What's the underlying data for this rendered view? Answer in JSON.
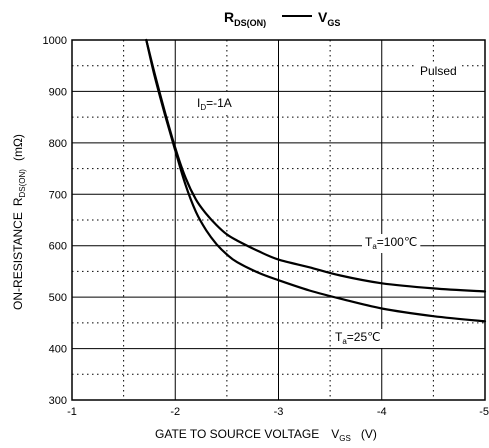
{
  "chart_data": {
    "type": "line",
    "title": {
      "left_main": "R",
      "left_sub": "DS(ON)",
      "right_main": "V",
      "right_sub": "GS"
    },
    "xlabel": {
      "main": "GATE TO SOURCE VOLTAGE",
      "symbol": "V",
      "symbol_sub": "GS",
      "unit": "(V)"
    },
    "ylabel": {
      "main": "ON-RESISTANCE",
      "symbol": "R",
      "symbol_sub": "DS(ON)",
      "unit": "(mΩ)"
    },
    "xlim": [
      -1,
      -5
    ],
    "ylim": [
      300,
      1000
    ],
    "x_tick_values": [
      -1,
      -2,
      -3,
      -4,
      -5
    ],
    "x_tick_labels": [
      "-1",
      "-2",
      "-3",
      "-4",
      "-5"
    ],
    "y_tick_values": [
      300,
      400,
      500,
      600,
      700,
      800,
      900,
      1000
    ],
    "y_tick_labels": [
      "300",
      "400",
      "500",
      "600",
      "700",
      "800",
      "900",
      "1000"
    ],
    "grid": true,
    "annotations": {
      "pulsed": "Pulsed",
      "id_main": "I",
      "id_sub": "D",
      "id_value": "=-1A"
    },
    "series": [
      {
        "label_main": "T",
        "label_sub": "a",
        "label_value": "=100℃",
        "x": [
          -1.72,
          -1.8,
          -1.9,
          -2.0,
          -2.1,
          -2.2,
          -2.3,
          -2.4,
          -2.5,
          -2.6,
          -2.8,
          -3.0,
          -3.3,
          -3.6,
          -4.0,
          -4.5,
          -5.0
        ],
        "y": [
          1000,
          935,
          860,
          790,
          732,
          690,
          662,
          640,
          622,
          610,
          590,
          573,
          558,
          542,
          527,
          517,
          511
        ]
      },
      {
        "label_main": "T",
        "label_sub": "a",
        "label_value": "=25℃",
        "x": [
          -1.72,
          -1.8,
          -1.9,
          -2.0,
          -2.1,
          -2.2,
          -2.3,
          -2.4,
          -2.5,
          -2.6,
          -2.8,
          -3.0,
          -3.3,
          -3.6,
          -4.0,
          -4.5,
          -5.0
        ],
        "y": [
          1000,
          930,
          855,
          785,
          718,
          666,
          630,
          603,
          583,
          568,
          548,
          533,
          513,
          497,
          478,
          463,
          453
        ]
      }
    ]
  }
}
